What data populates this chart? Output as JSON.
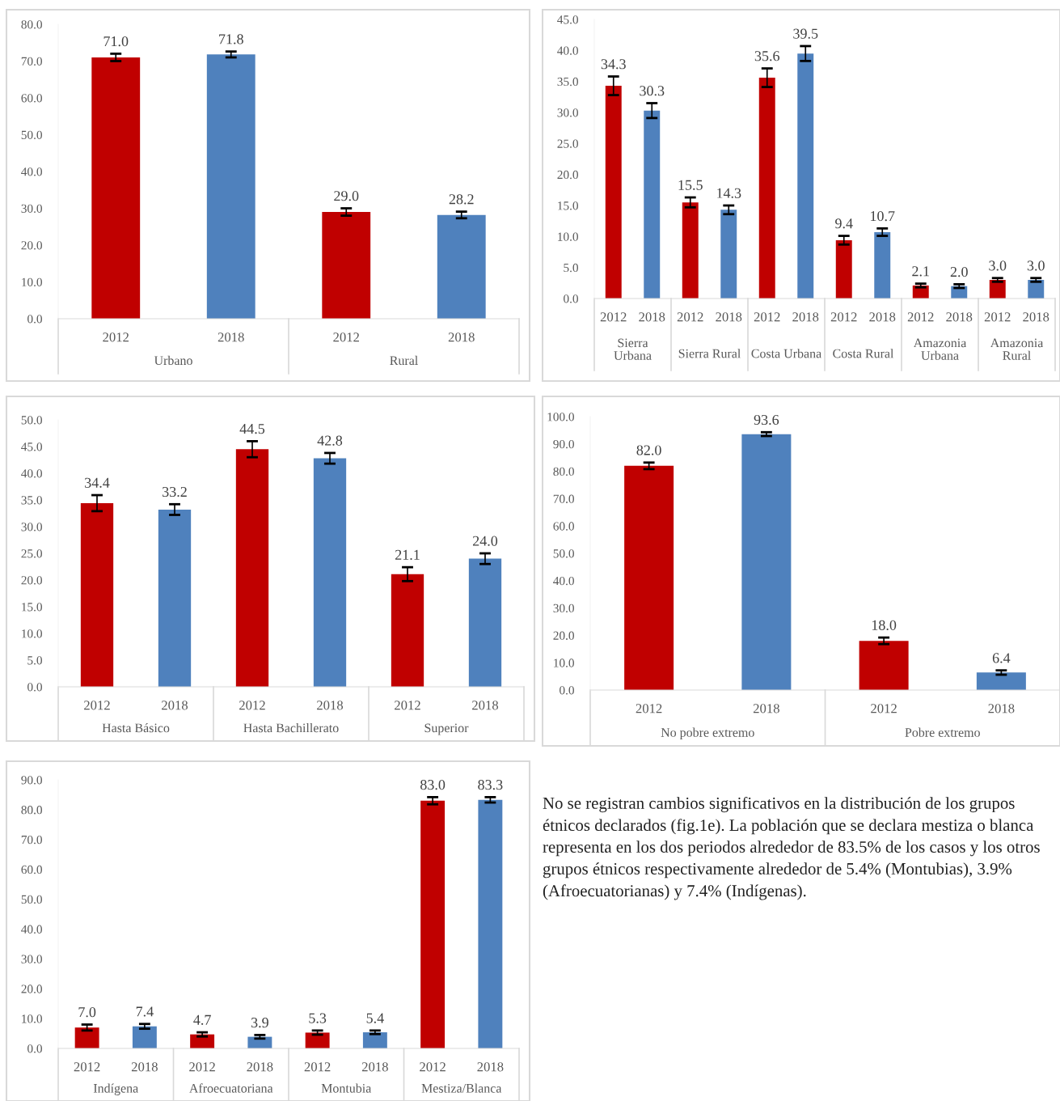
{
  "chart_data": [
    {
      "type": "bar",
      "categories": [
        "2012",
        "2018",
        "2012",
        "2018"
      ],
      "annotations": [
        "Urbano",
        "Rural"
      ],
      "values": [
        71.0,
        71.8,
        29.0,
        28.2
      ],
      "errors": [
        1.0,
        0.8,
        1.0,
        0.9
      ],
      "value_labels": [
        "71.0",
        "71.8",
        "29.0",
        "28.2"
      ],
      "colors": [
        "#c00000",
        "#4f81bd",
        "#c00000",
        "#4f81bd"
      ],
      "ylim": [
        0,
        80
      ],
      "yticks": [
        {
          "value": 0,
          "label": "0.0"
        },
        {
          "value": 10,
          "label": "10.0"
        },
        {
          "value": 20,
          "label": "20.0"
        },
        {
          "value": 30,
          "label": "30.0"
        },
        {
          "value": 40,
          "label": "40.0"
        },
        {
          "value": 50,
          "label": "50.0"
        },
        {
          "value": 60,
          "label": "60.0"
        },
        {
          "value": 70,
          "label": "70.0"
        },
        {
          "value": 80,
          "label": "80.0"
        }
      ],
      "grid": false,
      "legend": false
    },
    {
      "type": "bar",
      "categories": [
        "2012",
        "2018",
        "2012",
        "2018",
        "2012",
        "2018",
        "2012",
        "2018",
        "2012",
        "2018",
        "2012",
        "2018"
      ],
      "annotations": [
        "Sierra Urbana",
        "Sierra Rural",
        "Costa Urbana",
        "Costa Rural",
        "Amazonia Urbana",
        "Amazonia Rural"
      ],
      "values": [
        34.3,
        30.3,
        15.5,
        14.3,
        35.6,
        39.5,
        9.4,
        10.7,
        2.1,
        2.0,
        3.0,
        3.0
      ],
      "errors": [
        1.5,
        1.2,
        0.8,
        0.7,
        1.5,
        1.2,
        0.7,
        0.6,
        0.3,
        0.3,
        0.3,
        0.3
      ],
      "value_labels": [
        "34.3",
        "30.3",
        "15.5",
        "14.3",
        "35.6",
        "39.5",
        "9.4",
        "10.7",
        "2.1",
        "2.0",
        "3.0",
        "3.0"
      ],
      "colors": [
        "#c00000",
        "#4f81bd",
        "#c00000",
        "#4f81bd",
        "#c00000",
        "#4f81bd",
        "#c00000",
        "#4f81bd",
        "#c00000",
        "#4f81bd",
        "#c00000",
        "#4f81bd"
      ],
      "ylim": [
        0,
        45
      ],
      "yticks": [
        {
          "value": 0,
          "label": "0.0"
        },
        {
          "value": 5,
          "label": "5.0"
        },
        {
          "value": 10,
          "label": "10.0"
        },
        {
          "value": 15,
          "label": "15.0"
        },
        {
          "value": 20,
          "label": "20.0"
        },
        {
          "value": 25,
          "label": "25.0"
        },
        {
          "value": 30,
          "label": "30.0"
        },
        {
          "value": 35,
          "label": "35.0"
        },
        {
          "value": 40,
          "label": "40.0"
        },
        {
          "value": 45,
          "label": "45.0"
        }
      ],
      "grid": false,
      "legend": false
    },
    {
      "type": "bar",
      "categories": [
        "2012",
        "2018",
        "2012",
        "2018",
        "2012",
        "2018"
      ],
      "annotations": [
        "Hasta Básico",
        "Hasta Bachillerato",
        "Superior"
      ],
      "values": [
        34.4,
        33.2,
        44.5,
        42.8,
        21.1,
        24.0
      ],
      "errors": [
        1.5,
        1.0,
        1.5,
        1.0,
        1.3,
        1.0
      ],
      "value_labels": [
        "34.4",
        "33.2",
        "44.5",
        "42.8",
        "21.1",
        "24.0"
      ],
      "colors": [
        "#c00000",
        "#4f81bd",
        "#c00000",
        "#4f81bd",
        "#c00000",
        "#4f81bd"
      ],
      "ylim": [
        0,
        50
      ],
      "yticks": [
        {
          "value": 0,
          "label": "0.0"
        },
        {
          "value": 5,
          "label": "5.0"
        },
        {
          "value": 10,
          "label": "10.0"
        },
        {
          "value": 15,
          "label": "15.0"
        },
        {
          "value": 20,
          "label": "20.0"
        },
        {
          "value": 25,
          "label": "25.0"
        },
        {
          "value": 30,
          "label": "30.0"
        },
        {
          "value": 35,
          "label": "35.0"
        },
        {
          "value": 40,
          "label": "40.0"
        },
        {
          "value": 45,
          "label": "45.0"
        },
        {
          "value": 50,
          "label": "50.0"
        }
      ],
      "grid": false,
      "legend": false
    },
    {
      "type": "bar",
      "categories": [
        "2012",
        "2018",
        "2012",
        "2018"
      ],
      "annotations": [
        "No pobre extremo",
        "Pobre extremo"
      ],
      "values": [
        82.0,
        93.6,
        18.0,
        6.4
      ],
      "errors": [
        1.2,
        0.7,
        1.2,
        0.8
      ],
      "value_labels": [
        "82.0",
        "93.6",
        "18.0",
        "6.4"
      ],
      "colors": [
        "#c00000",
        "#4f81bd",
        "#c00000",
        "#4f81bd"
      ],
      "ylim": [
        0,
        100
      ],
      "yticks": [
        {
          "value": 0,
          "label": "0.0"
        },
        {
          "value": 10,
          "label": "10.0"
        },
        {
          "value": 20,
          "label": "20.0"
        },
        {
          "value": 30,
          "label": "30.0"
        },
        {
          "value": 40,
          "label": "40.0"
        },
        {
          "value": 50,
          "label": "50.0"
        },
        {
          "value": 60,
          "label": "60.0"
        },
        {
          "value": 70,
          "label": "70.0"
        },
        {
          "value": 80,
          "label": "80.0"
        },
        {
          "value": 90,
          "label": "90.0"
        },
        {
          "value": 100,
          "label": "100.0"
        }
      ],
      "grid": false,
      "legend": false
    },
    {
      "type": "bar",
      "categories": [
        "2012",
        "2018",
        "2012",
        "2018",
        "2012",
        "2018",
        "2012",
        "2018"
      ],
      "annotations": [
        "Indígena",
        "Afroecuatoriana",
        "Montubia",
        "Mestiza/Blanca"
      ],
      "values": [
        7.0,
        7.4,
        4.7,
        3.9,
        5.3,
        5.4,
        83.0,
        83.3
      ],
      "errors": [
        1.0,
        0.8,
        0.7,
        0.6,
        0.7,
        0.6,
        1.2,
        0.9
      ],
      "value_labels": [
        "7.0",
        "7.4",
        "4.7",
        "3.9",
        "5.3",
        "5.4",
        "83.0",
        "83.3"
      ],
      "colors": [
        "#c00000",
        "#4f81bd",
        "#c00000",
        "#4f81bd",
        "#c00000",
        "#4f81bd",
        "#c00000",
        "#4f81bd"
      ],
      "ylim": [
        0,
        90
      ],
      "yticks": [
        {
          "value": 0,
          "label": "0.0"
        },
        {
          "value": 10,
          "label": "10.0"
        },
        {
          "value": 20,
          "label": "20.0"
        },
        {
          "value": 30,
          "label": "30.0"
        },
        {
          "value": 40,
          "label": "40.0"
        },
        {
          "value": 50,
          "label": "50.0"
        },
        {
          "value": 60,
          "label": "60.0"
        },
        {
          "value": 70,
          "label": "70.0"
        },
        {
          "value": 80,
          "label": "80.0"
        },
        {
          "value": 90,
          "label": "90.0"
        }
      ],
      "grid": false,
      "legend": false
    },
    {
      "type": "other",
      "annotations": [
        "No se registran cambios significativos en la distribución de los grupos étnicos declarados (fig.1e). La población que se declara mestiza o blanca representa en los dos periodos alrededor de 83.5% de los casos y los otros grupos étnicos respectivamente alrededor de 5.4% (Montubias), 3.9% (Afroecuatorianas) y 7.4% (Indígenas)."
      ]
    }
  ]
}
